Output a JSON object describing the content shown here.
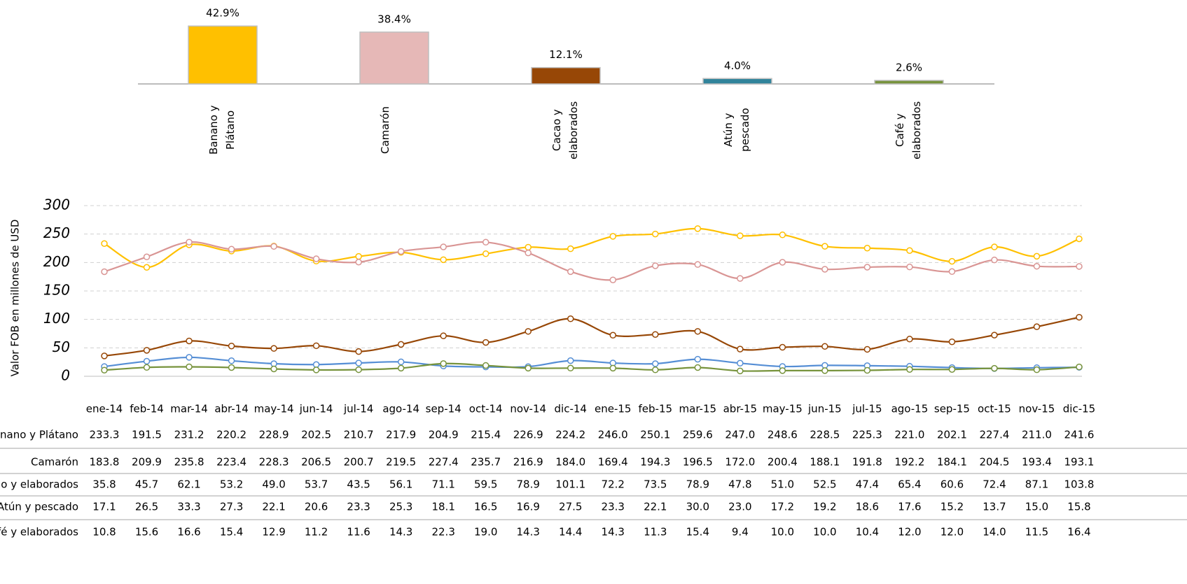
{
  "chart_data": [
    {
      "type": "bar",
      "categories": [
        "Banano y Plátano",
        "Camarón",
        "Cacao y elaborados",
        "Atún y pescado",
        "Café y elaborados"
      ],
      "values": [
        42.9,
        38.4,
        12.1,
        4.0,
        2.6
      ],
      "value_labels": [
        "42.9%",
        "38.4%",
        "12.1%",
        "4.0%",
        "2.6%"
      ],
      "colors": [
        "#FFC000",
        "#E6B8B7",
        "#974706",
        "#31849B",
        "#77933C"
      ]
    },
    {
      "type": "line",
      "ylabel": "Valor FOB en millones de USD",
      "categories": [
        "ene-14",
        "feb-14",
        "mar-14",
        "abr-14",
        "may-14",
        "jun-14",
        "jul-14",
        "ago-14",
        "sep-14",
        "oct-14",
        "nov-14",
        "dic-14",
        "ene-15",
        "feb-15",
        "mar-15",
        "abr-15",
        "may-15",
        "jun-15",
        "jul-15",
        "ago-15",
        "sep-15",
        "oct-15",
        "nov-15",
        "dic-15"
      ],
      "ylim": [
        0,
        300
      ],
      "yticks": [
        0,
        50,
        100,
        150,
        200,
        250,
        300
      ],
      "grid": true,
      "series": [
        {
          "name": "Banano y Plátano",
          "color": "#FFC000",
          "values": [
            233.3,
            191.5,
            231.2,
            220.2,
            228.9,
            202.5,
            210.7,
            217.9,
            204.9,
            215.4,
            226.9,
            224.2,
            246.0,
            250.1,
            259.6,
            247.0,
            248.6,
            228.5,
            225.3,
            221.0,
            202.1,
            227.4,
            211.0,
            241.6
          ],
          "value_labels": [
            "233.3",
            "191.5",
            "231.2",
            "220.2",
            "228.9",
            "202.5",
            "210.7",
            "217.9",
            "204.9",
            "215.4",
            "226.9",
            "224.2",
            "246.0",
            "250.1",
            "259.6",
            "247.0",
            "248.6",
            "228.5",
            "225.3",
            "221.0",
            "202.1",
            "227.4",
            "211.0",
            "241.6"
          ]
        },
        {
          "name": "Camarón",
          "color": "#D99594",
          "values": [
            183.8,
            209.9,
            235.8,
            223.4,
            228.3,
            206.5,
            200.7,
            219.5,
            227.4,
            235.7,
            216.9,
            184.0,
            169.4,
            194.3,
            196.5,
            172.0,
            200.4,
            188.1,
            191.8,
            192.2,
            184.1,
            204.5,
            193.4,
            193.1
          ],
          "value_labels": [
            "183.8",
            "209.9",
            "235.8",
            "223.4",
            "228.3",
            "206.5",
            "200.7",
            "219.5",
            "227.4",
            "235.7",
            "216.9",
            "184.0",
            "169.4",
            "194.3",
            "196.5",
            "172.0",
            "200.4",
            "188.1",
            "191.8",
            "192.2",
            "184.1",
            "204.5",
            "193.4",
            "193.1"
          ]
        },
        {
          "name": "Cacao y elaborados",
          "color": "#974706",
          "values": [
            35.8,
            45.7,
            62.1,
            53.2,
            49.0,
            53.7,
            43.5,
            56.1,
            71.1,
            59.5,
            78.9,
            101.1,
            72.2,
            73.5,
            78.9,
            47.8,
            51.0,
            52.5,
            47.4,
            65.4,
            60.6,
            72.4,
            87.1,
            103.8
          ],
          "value_labels": [
            "35.8",
            "45.7",
            "62.1",
            "53.2",
            "49.0",
            "53.7",
            "43.5",
            "56.1",
            "71.1",
            "59.5",
            "78.9",
            "101.1",
            "72.2",
            "73.5",
            "78.9",
            "47.8",
            "51.0",
            "52.5",
            "47.4",
            "65.4",
            "60.6",
            "72.4",
            "87.1",
            "103.8"
          ]
        },
        {
          "name": "Atún y pescado",
          "color": "#558ED5",
          "values": [
            17.1,
            26.5,
            33.3,
            27.3,
            22.1,
            20.6,
            23.3,
            25.3,
            18.1,
            16.5,
            16.9,
            27.5,
            23.3,
            22.1,
            30.0,
            23.0,
            17.2,
            19.2,
            18.6,
            17.6,
            15.2,
            13.7,
            15.0,
            15.8
          ],
          "value_labels": [
            "17.1",
            "26.5",
            "33.3",
            "27.3",
            "22.1",
            "20.6",
            "23.3",
            "25.3",
            "18.1",
            "16.5",
            "16.9",
            "27.5",
            "23.3",
            "22.1",
            "30.0",
            "23.0",
            "17.2",
            "19.2",
            "18.6",
            "17.6",
            "15.2",
            "13.7",
            "15.0",
            "15.8"
          ]
        },
        {
          "name": "Café y elaborados",
          "color": "#77933C",
          "values": [
            10.8,
            15.6,
            16.6,
            15.4,
            12.9,
            11.2,
            11.6,
            14.3,
            22.3,
            19.0,
            14.3,
            14.4,
            14.3,
            11.3,
            15.4,
            9.4,
            10.0,
            10.0,
            10.4,
            12.0,
            12.0,
            14.0,
            11.5,
            16.4
          ],
          "value_labels": [
            "10.8",
            "15.6",
            "16.6",
            "15.4",
            "12.9",
            "11.2",
            "11.6",
            "14.3",
            "22.3",
            "19.0",
            "14.3",
            "14.4",
            "14.3",
            "11.3",
            "15.4",
            "9.4",
            "10.0",
            "10.0",
            "10.4",
            "12.0",
            "12.0",
            "14.0",
            "11.5",
            "16.4"
          ]
        }
      ]
    }
  ]
}
